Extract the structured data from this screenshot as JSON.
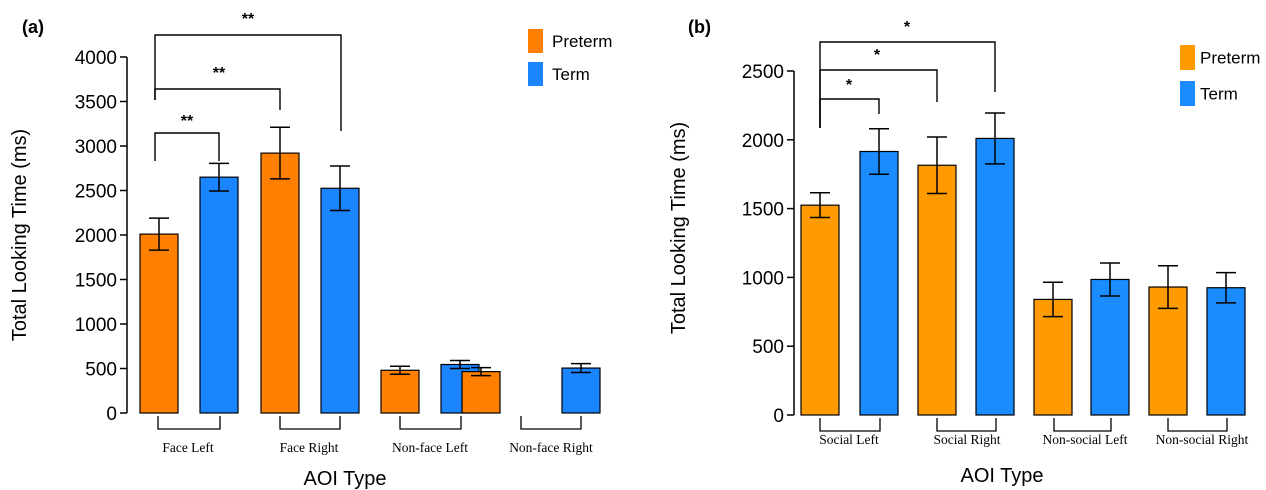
{
  "chart_data": [
    {
      "panel_label": "(a)",
      "type": "bar",
      "xlabel": "AOI Type",
      "ylabel": "Total Looking Time (ms)",
      "ylim": [
        0,
        4000
      ],
      "yticks": [
        "0",
        "500",
        "1000",
        "1500",
        "2000",
        "2500",
        "3000",
        "3500",
        "4000"
      ],
      "categories": [
        "Face Left",
        "Face Right",
        "Non-face Left",
        "Non-face Right"
      ],
      "series": [
        {
          "name": "Preterm",
          "color": "#FF8000",
          "values": [
            2010,
            2920,
            480,
            465
          ],
          "errors": [
            180,
            290,
            45,
            45
          ]
        },
        {
          "name": "Term",
          "color": "#1A85FF",
          "values": [
            2650,
            2525,
            545,
            505
          ],
          "errors": [
            155,
            250,
            45,
            50
          ]
        }
      ],
      "legend": "top-right",
      "significance": [
        "**",
        "**",
        "**"
      ]
    },
    {
      "panel_label": "(b)",
      "type": "bar",
      "xlabel": "AOI Type",
      "ylabel": "Total Looking Time (ms)",
      "ylim": [
        0,
        2500
      ],
      "yticks": [
        "0",
        "500",
        "1000",
        "1500",
        "2000",
        "2500"
      ],
      "categories": [
        "Social Left",
        "Social Right",
        "Non-social Left",
        "Non-social Right"
      ],
      "series": [
        {
          "name": "Preterm",
          "color": "#FF9A00",
          "values": [
            1525,
            1815,
            840,
            930
          ],
          "errors": [
            90,
            205,
            125,
            155
          ]
        },
        {
          "name": "Term",
          "color": "#1A8CFF",
          "values": [
            1915,
            2010,
            985,
            925
          ],
          "errors": [
            165,
            185,
            120,
            110
          ]
        }
      ],
      "legend": "top-right",
      "significance": [
        "*",
        "*",
        "*"
      ]
    }
  ]
}
